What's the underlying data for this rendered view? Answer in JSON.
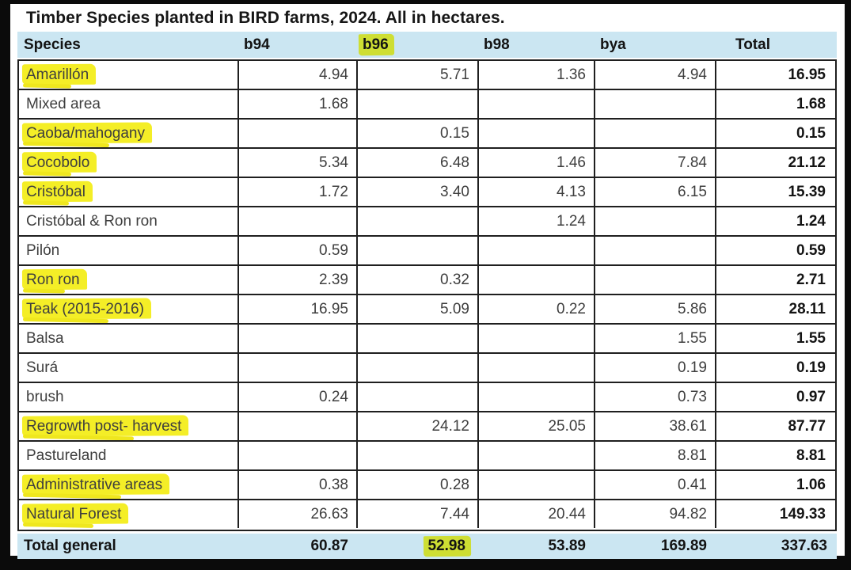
{
  "title": "Timber Species planted in BIRD farms, 2024. All in hectares.",
  "table": {
    "columns": [
      "Species",
      "b94",
      "b96",
      "b98",
      "bya",
      "Total"
    ],
    "header_highlighted_column": "b96",
    "rows": [
      {
        "species": "Amarillón",
        "highlight": true,
        "values": [
          "4.94",
          "5.71",
          "1.36",
          "4.94"
        ],
        "total": "16.95"
      },
      {
        "species": "Mixed area",
        "highlight": false,
        "values": [
          "1.68",
          "",
          "",
          ""
        ],
        "total": "1.68"
      },
      {
        "species": "Caoba/mahogany",
        "highlight": true,
        "values": [
          "",
          "0.15",
          "",
          ""
        ],
        "total": "0.15"
      },
      {
        "species": "Cocobolo",
        "highlight": true,
        "values": [
          "5.34",
          "6.48",
          "1.46",
          "7.84"
        ],
        "total": "21.12"
      },
      {
        "species": "Cristóbal",
        "highlight": true,
        "values": [
          "1.72",
          "3.40",
          "4.13",
          "6.15"
        ],
        "total": "15.39"
      },
      {
        "species": "Cristóbal & Ron ron",
        "highlight": false,
        "values": [
          "",
          "",
          "1.24",
          ""
        ],
        "total": "1.24"
      },
      {
        "species": "Pilón",
        "highlight": false,
        "values": [
          "0.59",
          "",
          "",
          ""
        ],
        "total": "0.59"
      },
      {
        "species": "Ron ron",
        "highlight": true,
        "values": [
          "2.39",
          "0.32",
          "",
          ""
        ],
        "total": "2.71"
      },
      {
        "species": "Teak (2015-2016)",
        "highlight": true,
        "values": [
          "16.95",
          "5.09",
          "0.22",
          "5.86"
        ],
        "total": "28.11"
      },
      {
        "species": "Balsa",
        "highlight": false,
        "values": [
          "",
          "",
          "",
          "1.55"
        ],
        "total": "1.55"
      },
      {
        "species": "Surá",
        "highlight": false,
        "values": [
          "",
          "",
          "",
          "0.19"
        ],
        "total": "0.19"
      },
      {
        "species": "brush",
        "highlight": false,
        "values": [
          "0.24",
          "",
          "",
          "0.73"
        ],
        "total": "0.97"
      },
      {
        "species": "Regrowth post- harvest",
        "highlight": true,
        "values": [
          "",
          "24.12",
          "25.05",
          "38.61"
        ],
        "total": "87.77"
      },
      {
        "species": "Pastureland",
        "highlight": false,
        "values": [
          "",
          "",
          "",
          "8.81"
        ],
        "total": "8.81"
      },
      {
        "species": "Administrative areas",
        "highlight": true,
        "values": [
          "0.38",
          "0.28",
          "",
          "0.41"
        ],
        "total": "1.06"
      },
      {
        "species": "Natural Forest",
        "highlight": true,
        "values": [
          "26.63",
          "7.44",
          "20.44",
          "94.82"
        ],
        "total": "149.33"
      }
    ],
    "total_row": {
      "label": "Total general",
      "values": [
        "60.87",
        "52.98",
        "53.89",
        "169.89"
      ],
      "total": "337.63",
      "highlighted_value": "52.98"
    }
  },
  "colors": {
    "header_band": "#cbe6f2",
    "highlight_yellow": "#f4ee27",
    "highlight_on_blue": "#cede33",
    "border": "#1f1f1f",
    "frame": "#0b0b0b"
  }
}
